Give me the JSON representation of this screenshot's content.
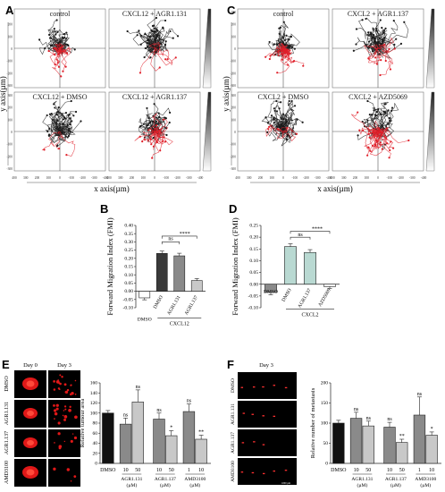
{
  "panel_letters": {
    "A": "A",
    "B": "B",
    "C": "C",
    "D": "D",
    "E": "E",
    "F": "F"
  },
  "panelA": {
    "titles": [
      "control",
      "CXCL12 + AGR1.131",
      "CXCL12 + DMSO",
      "CXCL12 + AGR1.137"
    ],
    "x_axis_label": "x axis(µm)",
    "y_axis_label": "y axis(µm)"
  },
  "panelC": {
    "titles": [
      "control",
      "CXCL2 + AGR1.137",
      "CXCL2 + DMSO",
      "CXCL2 + AZD5069"
    ],
    "x_axis_label": "x axis(µm)",
    "y_axis_label": "y axis(µm)"
  },
  "tick_labels_x": [
    "400",
    "300",
    "200",
    "100",
    "0",
    "-100",
    "-200",
    "-300",
    "-400"
  ],
  "tick_labels_y": [
    "300",
    "200",
    "100",
    "0",
    "-100",
    "-200",
    "-300"
  ],
  "panelE": {
    "col_headers": [
      "Day 0",
      "Day 3"
    ],
    "row_labels": [
      "DMSO",
      "AGR1.131",
      "AGR1.137",
      "AMD3100"
    ]
  },
  "panelF": {
    "col_header": "Day 3",
    "row_labels": [
      "DMSO",
      "AGR1.131",
      "AGR1.137",
      "AMD3100"
    ],
    "scale_text": "1000 µm"
  },
  "colors": {
    "bar_dark": "#3a3a3a",
    "bar_mid": "#8a8a8a",
    "bar_light": "#c8c8c8",
    "bar_white": "#ffffff",
    "bar_black": "#111111",
    "bar_teal": "#b9d9d2",
    "track_black": "#1b1b1b",
    "track_red": "#e0202a"
  },
  "chart_data": [
    {
      "id": "B",
      "type": "bar",
      "ylabel": "Forward Migration Index (FMI)",
      "ylim": [
        -0.1,
        0.4
      ],
      "yticks": [
        "-0.10",
        "-0.05",
        "0.00",
        "0.05",
        "0.10",
        "0.15",
        "0.20",
        "0.25",
        "0.30",
        "0.35",
        "0.40"
      ],
      "categories": [
        "DMSO",
        "DMSO",
        "AGR1.131",
        "AGR1.137"
      ],
      "values": [
        -0.04,
        0.23,
        0.215,
        0.065
      ],
      "errors": [
        0.012,
        0.014,
        0.016,
        0.012
      ],
      "group_label": "CXCL12",
      "annotations": [
        "ns",
        "****"
      ]
    },
    {
      "id": "D",
      "type": "bar",
      "ylabel": "Forward Migration Index (FMI)",
      "ylim": [
        -0.1,
        0.25
      ],
      "yticks": [
        "-0.10",
        "-0.05",
        "0.00",
        "0.05",
        "0.10",
        "0.15",
        "0.20",
        "0.25"
      ],
      "categories": [
        "DMSO",
        "DMSO",
        "AGR1.137",
        "AZD5069"
      ],
      "values": [
        -0.035,
        0.16,
        0.135,
        -0.01
      ],
      "errors": [
        0.01,
        0.012,
        0.012,
        0.008
      ],
      "group_label": "CXCL2",
      "annotations": [
        "ns",
        "****"
      ]
    },
    {
      "id": "E",
      "type": "bar",
      "ylabel": "Relative tumour area",
      "ylim": [
        0,
        160
      ],
      "yticks": [
        "0",
        "20",
        "40",
        "60",
        "80",
        "100",
        "120",
        "140",
        "160"
      ],
      "categories": [
        "DMSO",
        "10",
        "50",
        "10",
        "50",
        "1",
        "10"
      ],
      "group_labels": [
        "AGR1.131",
        "AGR1.137",
        "AMD3100"
      ],
      "unit_label": "(µM)",
      "values": [
        100,
        78,
        122,
        88,
        55,
        103,
        48
      ],
      "errors": [
        5,
        12,
        24,
        12,
        10,
        15,
        8
      ],
      "annotations": [
        "",
        "ns",
        "ns",
        "ns",
        "*",
        "ns",
        "**"
      ]
    },
    {
      "id": "F",
      "type": "bar",
      "ylabel": "Relative number of metastasis",
      "ylim": [
        0,
        200
      ],
      "yticks": [
        "0",
        "50",
        "100",
        "150",
        "200"
      ],
      "categories": [
        "DMSO",
        "10",
        "50",
        "10",
        "50",
        "1",
        "10"
      ],
      "group_labels": [
        "AGR1.131",
        "AGR1.137",
        "AMD3100"
      ],
      "unit_label": "(µM)",
      "values": [
        100,
        112,
        93,
        90,
        52,
        120,
        70
      ],
      "errors": [
        7,
        15,
        12,
        12,
        8,
        45,
        8
      ],
      "annotations": [
        "",
        "ns",
        "ns",
        "ns",
        "**",
        "ns",
        "*"
      ]
    }
  ]
}
